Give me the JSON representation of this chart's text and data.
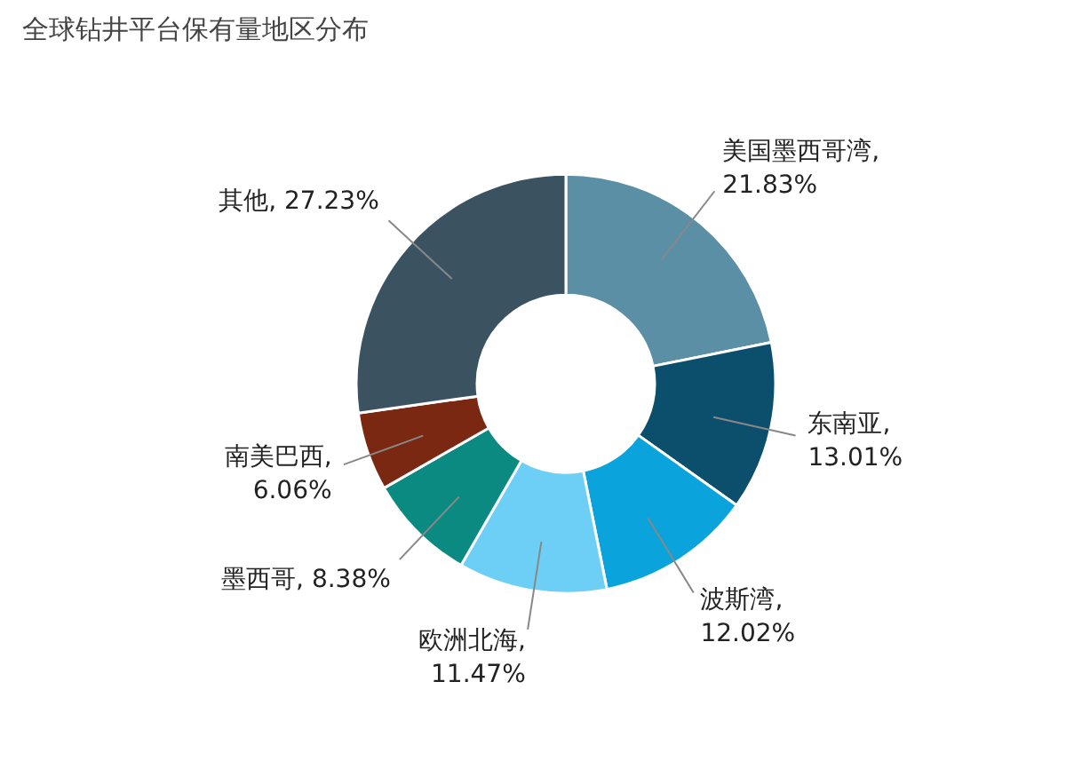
{
  "chart_data": {
    "type": "donut",
    "title": "全球钻井平台保有量地区分布",
    "categories": [
      "美国墨西哥湾",
      "东南亚",
      "波斯湾",
      "欧洲北海",
      "墨西哥",
      "南美巴西",
      "其他"
    ],
    "values": [
      21.83,
      13.01,
      12.02,
      11.47,
      8.38,
      6.06,
      27.23
    ],
    "value_labels": [
      ",\n21.83%",
      ",\n13.01%",
      ",\n12.02%",
      ",\n11.47%",
      ", 8.38%",
      ",\n6.06%",
      ", 27.23%"
    ],
    "colors": [
      "#5a8fa6",
      "#0b4f6c",
      "#0ba3dc",
      "#6ecff6",
      "#0a8a80",
      "#7b2812",
      "#3b5361"
    ]
  }
}
